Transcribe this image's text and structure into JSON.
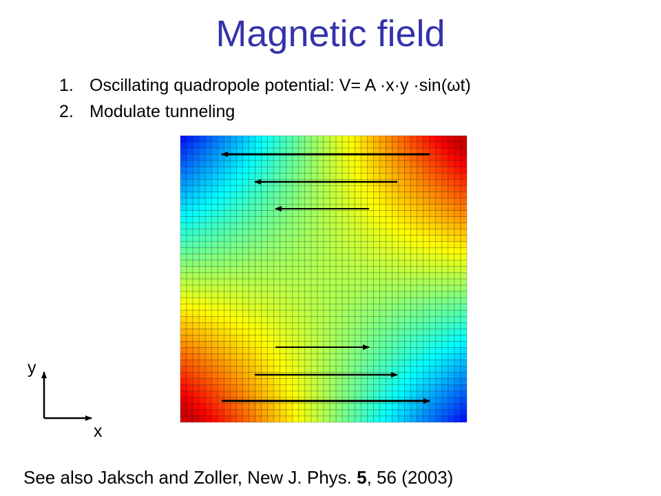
{
  "title": "Magnetic field",
  "list": [
    {
      "marker": "1.",
      "text": "Oscillating quadropole potential: V= A ·x·y ·sin(ωt)"
    },
    {
      "marker": "2.",
      "text": "Modulate tunneling"
    }
  ],
  "axes": {
    "y": "y",
    "x": "x"
  },
  "footer": [
    "See also Jaksch and Zoller, New J. Phys. ",
    "5",
    ", 56 (2003)"
  ]
}
